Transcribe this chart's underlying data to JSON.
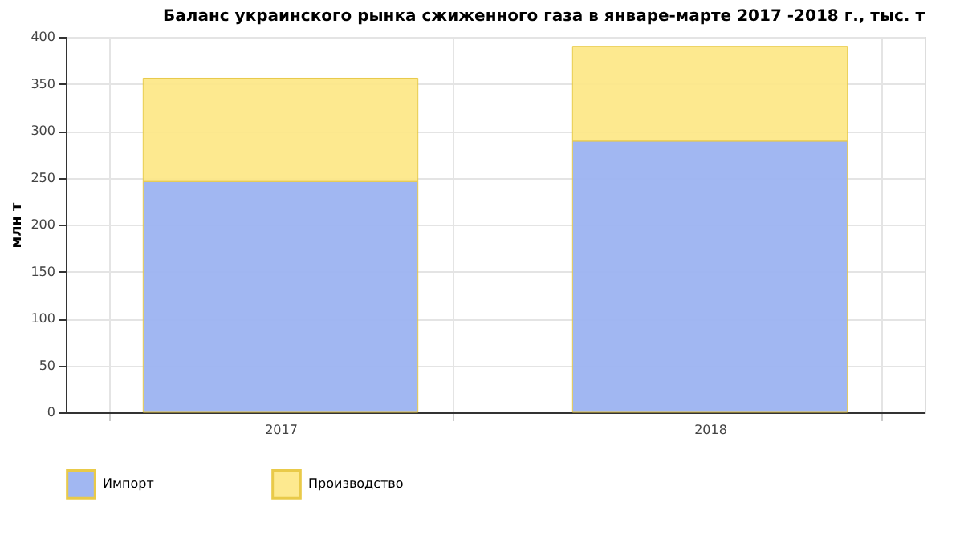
{
  "chart_data": {
    "type": "bar",
    "title": "Баланс украинского рынка сжиженного газа в январе-марте 2017 -2018 г., тыс. т",
    "ylabel": "млн т",
    "categories": [
      "2017",
      "2018"
    ],
    "stacked": true,
    "series": [
      {
        "name": "Импорт",
        "color": "#9db4f2",
        "values": [
          246,
          289
        ]
      },
      {
        "name": "Производство",
        "color": "#fde88a",
        "values": [
          110,
          101
        ]
      }
    ],
    "ylim": [
      0,
      400
    ],
    "yticks": [
      0,
      50,
      100,
      150,
      200,
      250,
      300,
      350,
      400
    ],
    "grid": true,
    "legend": "bottom left"
  }
}
